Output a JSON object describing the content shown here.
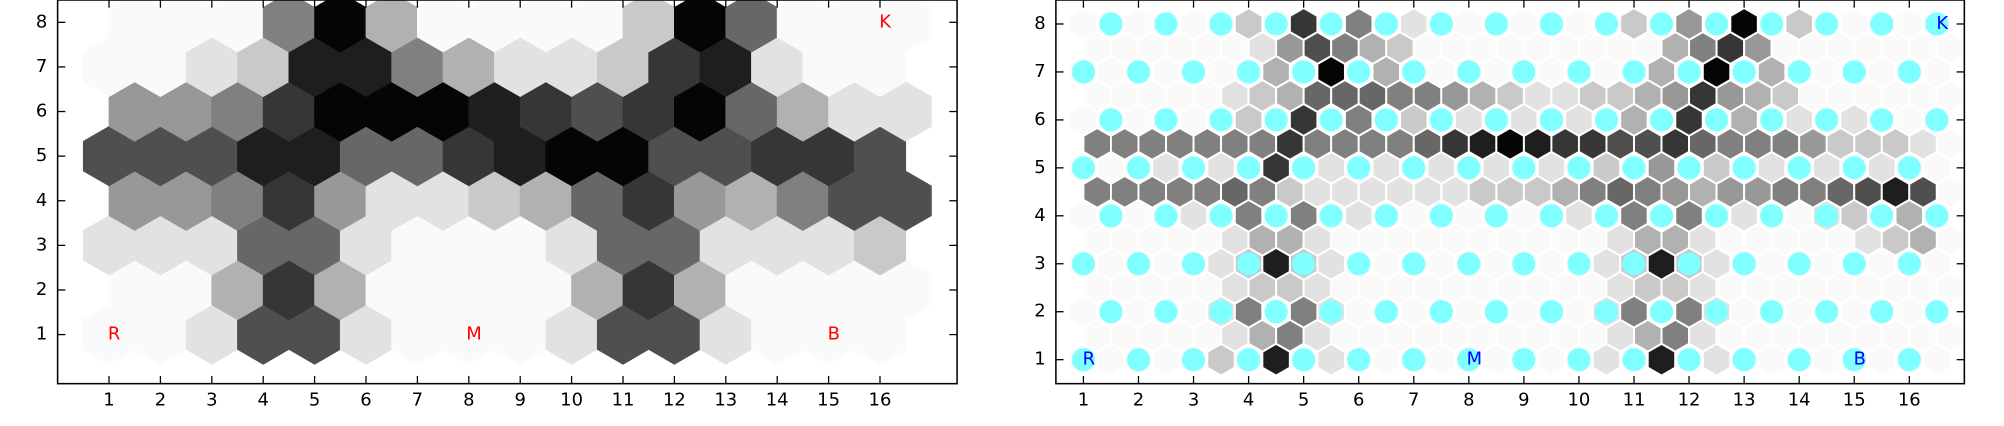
{
  "chart_data": [
    {
      "type": "hexmap",
      "xlim": [
        0,
        17.5
      ],
      "ylim": [
        -0.1,
        8.5
      ],
      "xticks": [
        1,
        2,
        3,
        4,
        5,
        6,
        7,
        8,
        9,
        10,
        11,
        12,
        13,
        14,
        15,
        16
      ],
      "yticks": [
        1,
        2,
        3,
        4,
        5,
        6,
        7,
        8
      ],
      "cell_color": "#000000",
      "cell_border": false,
      "rows": [
        {
          "y": 1,
          "x0": 1,
          "dx": 1,
          "values": [
            0,
            0,
            1,
            7,
            7,
            1,
            0,
            0,
            0,
            1,
            7,
            7,
            1,
            0,
            0,
            0
          ]
        },
        {
          "y": 2,
          "x0": 1.5,
          "dx": 1,
          "values": [
            0,
            0,
            3,
            8,
            3,
            0,
            0,
            0,
            0,
            3,
            8,
            3,
            0,
            0,
            0,
            0
          ]
        },
        {
          "y": 3,
          "x0": 1,
          "dx": 1,
          "values": [
            1,
            1,
            1,
            6,
            6,
            1,
            0,
            0,
            0,
            1,
            6,
            6,
            1,
            1,
            1,
            2
          ]
        },
        {
          "y": 4,
          "x0": 1.5,
          "dx": 1,
          "values": [
            4,
            4,
            5,
            8,
            4,
            1,
            1,
            2,
            3,
            6,
            8,
            4,
            3,
            5,
            7,
            7
          ]
        },
        {
          "y": 5,
          "x0": 1,
          "dx": 1,
          "values": [
            7,
            7,
            7,
            9,
            9,
            6,
            6,
            8,
            9,
            10,
            10,
            7,
            7,
            8,
            8,
            7
          ]
        },
        {
          "y": 6,
          "x0": 1.5,
          "dx": 1,
          "values": [
            4,
            4,
            5,
            8,
            10,
            10,
            10,
            9,
            8,
            7,
            8,
            10,
            6,
            3,
            1,
            1
          ]
        },
        {
          "y": 7,
          "x0": 1,
          "dx": 1,
          "values": [
            0,
            0,
            1,
            2,
            9,
            9,
            5,
            3,
            1,
            1,
            2,
            8,
            9,
            1,
            0,
            0
          ]
        },
        {
          "y": 8,
          "x0": 1.5,
          "dx": 1,
          "values": [
            0,
            0,
            0,
            5,
            10,
            3,
            0,
            0,
            0,
            0,
            2,
            10,
            6,
            0,
            0,
            0
          ]
        }
      ],
      "annotations": [
        {
          "text": "K",
          "x": 16.1,
          "y": 8,
          "color": "#ff0000"
        },
        {
          "text": "R",
          "x": 1.1,
          "y": 1,
          "color": "#ff0000"
        },
        {
          "text": "M",
          "x": 8.1,
          "y": 1,
          "color": "#ff0000"
        },
        {
          "text": "B",
          "x": 15.1,
          "y": 1,
          "color": "#ff0000"
        }
      ]
    },
    {
      "type": "hexmap",
      "xlim": [
        0.5,
        17
      ],
      "ylim": [
        0.5,
        8.5
      ],
      "xticks": [
        1,
        2,
        3,
        4,
        5,
        6,
        7,
        8,
        9,
        10,
        11,
        12,
        13,
        14,
        15,
        16
      ],
      "yticks": [
        1,
        2,
        3,
        4,
        5,
        6,
        7,
        8
      ],
      "cell_color": "#000000",
      "cell_border": true,
      "node_color": "#7fffff",
      "rows": [
        {
          "y": 1,
          "x0": 1,
          "dx": 0.5,
          "values": [
            0,
            0,
            0,
            0,
            0,
            2,
            0,
            9,
            0,
            1,
            0,
            0,
            0,
            0,
            0,
            0,
            0,
            0,
            0,
            1,
            0,
            9,
            0,
            1,
            0,
            0,
            0,
            0,
            0,
            0,
            0,
            0
          ]
        },
        {
          "y": 1.5,
          "x0": 1.25,
          "dx": 0.5,
          "values": [
            0,
            0,
            0,
            0,
            0,
            1,
            3,
            5,
            1,
            0,
            0,
            0,
            0,
            0,
            0,
            0,
            0,
            0,
            0,
            1,
            3,
            5,
            1,
            0,
            0,
            0,
            0,
            0,
            0,
            0,
            0,
            0
          ]
        },
        {
          "y": 2,
          "x0": 1,
          "dx": 0.5,
          "values": [
            0,
            0,
            0,
            0,
            0,
            1,
            5,
            0,
            5,
            1,
            0,
            0,
            0,
            0,
            0,
            0,
            0,
            0,
            0,
            1,
            5,
            0,
            5,
            1,
            0,
            0,
            0,
            0,
            0,
            0,
            0,
            0
          ]
        },
        {
          "y": 2.5,
          "x0": 1.25,
          "dx": 0.5,
          "values": [
            0,
            0,
            0,
            0,
            0,
            1,
            2,
            2,
            1,
            0,
            0,
            0,
            0,
            0,
            0,
            0,
            0,
            0,
            0,
            1,
            2,
            2,
            1,
            0,
            0,
            0,
            0,
            0,
            0,
            0,
            0,
            0
          ]
        },
        {
          "y": 3,
          "x0": 1,
          "dx": 0.5,
          "values": [
            0,
            0,
            0,
            0,
            0,
            1,
            2,
            9,
            2,
            1,
            0,
            0,
            0,
            0,
            0,
            0,
            0,
            0,
            0,
            1,
            2,
            9,
            2,
            1,
            0,
            0,
            0,
            0,
            0,
            0,
            0,
            0
          ]
        },
        {
          "y": 3.5,
          "x0": 1.25,
          "dx": 0.5,
          "values": [
            0,
            0,
            0,
            0,
            0,
            1,
            3,
            3,
            1,
            0,
            0,
            0,
            0,
            0,
            0,
            0,
            0,
            0,
            0,
            1,
            3,
            3,
            1,
            0,
            0,
            0,
            0,
            0,
            1,
            2,
            3,
            0
          ]
        },
        {
          "y": 4,
          "x0": 1,
          "dx": 0.5,
          "values": [
            0,
            0,
            0,
            0,
            1,
            0,
            5,
            0,
            5,
            0,
            1,
            0,
            0,
            0,
            0,
            0,
            0,
            0,
            1,
            0,
            5,
            0,
            5,
            0,
            1,
            0,
            0,
            1,
            2,
            0,
            3,
            0
          ]
        },
        {
          "y": 4.5,
          "x0": 1.25,
          "dx": 0.5,
          "values": [
            5,
            5,
            5,
            5,
            5,
            6,
            5,
            2,
            1,
            1,
            1,
            1,
            1,
            1,
            2,
            2,
            2,
            3,
            5,
            6,
            5,
            4,
            3,
            4,
            4,
            5,
            5,
            6,
            7,
            9,
            7,
            0
          ]
        },
        {
          "y": 5,
          "x0": 1,
          "dx": 0.5,
          "values": [
            0,
            0,
            0,
            1,
            0,
            1,
            0,
            8,
            0,
            1,
            0,
            1,
            0,
            1,
            0,
            1,
            0,
            1,
            0,
            2,
            0,
            4,
            0,
            2,
            0,
            1,
            0,
            1,
            0,
            1,
            0,
            0
          ]
        },
        {
          "y": 5.5,
          "x0": 1.25,
          "dx": 0.5,
          "values": [
            5,
            5,
            5,
            5,
            5,
            5,
            5,
            8,
            5,
            5,
            5,
            5,
            6,
            8,
            9,
            10,
            9,
            8,
            8,
            7,
            7,
            8,
            6,
            5,
            5,
            5,
            4,
            2,
            2,
            2,
            1,
            0
          ]
        },
        {
          "y": 6,
          "x0": 1,
          "dx": 0.5,
          "values": [
            0,
            0,
            0,
            0,
            0,
            0,
            2,
            0,
            8,
            0,
            5,
            0,
            2,
            0,
            1,
            0,
            1,
            0,
            1,
            0,
            3,
            0,
            8,
            0,
            3,
            0,
            1,
            0,
            1,
            0,
            0,
            0
          ]
        },
        {
          "y": 6.5,
          "x0": 1.25,
          "dx": 0.5,
          "values": [
            0,
            0,
            0,
            0,
            0,
            1,
            2,
            3,
            6,
            6,
            6,
            5,
            5,
            4,
            3,
            2,
            1,
            1,
            2,
            2,
            3,
            4,
            8,
            4,
            3,
            2,
            0,
            0,
            0,
            0,
            0,
            0
          ]
        },
        {
          "y": 7,
          "x0": 1,
          "dx": 0.5,
          "values": [
            0,
            0,
            0,
            0,
            0,
            0,
            0,
            3,
            0,
            10,
            0,
            3,
            0,
            0,
            0,
            0,
            0,
            0,
            0,
            0,
            0,
            3,
            0,
            10,
            0,
            3,
            0,
            0,
            0,
            0,
            0,
            0
          ]
        },
        {
          "y": 7.5,
          "x0": 1.25,
          "dx": 0.5,
          "values": [
            0,
            0,
            0,
            0,
            0,
            0,
            1,
            4,
            7,
            5,
            3,
            2,
            0,
            0,
            0,
            0,
            0,
            0,
            0,
            0,
            0,
            3,
            5,
            8,
            4,
            0,
            0,
            0,
            0,
            0,
            0,
            0
          ]
        },
        {
          "y": 8,
          "x0": 1,
          "dx": 0.5,
          "values": [
            0,
            0,
            0,
            0,
            0,
            0,
            2,
            0,
            8,
            0,
            5,
            0,
            1,
            0,
            0,
            0,
            0,
            0,
            0,
            0,
            2,
            0,
            4,
            0,
            10,
            0,
            2,
            0,
            0,
            0,
            0,
            0
          ]
        }
      ],
      "annotations": [
        {
          "text": "K",
          "x": 16.6,
          "y": 8,
          "color": "#0000ff"
        },
        {
          "text": "R",
          "x": 1.1,
          "y": 1,
          "color": "#0000ff"
        },
        {
          "text": "M",
          "x": 8.1,
          "y": 1,
          "color": "#0000ff"
        },
        {
          "text": "B",
          "x": 15.1,
          "y": 1,
          "color": "#0000ff"
        }
      ]
    }
  ]
}
